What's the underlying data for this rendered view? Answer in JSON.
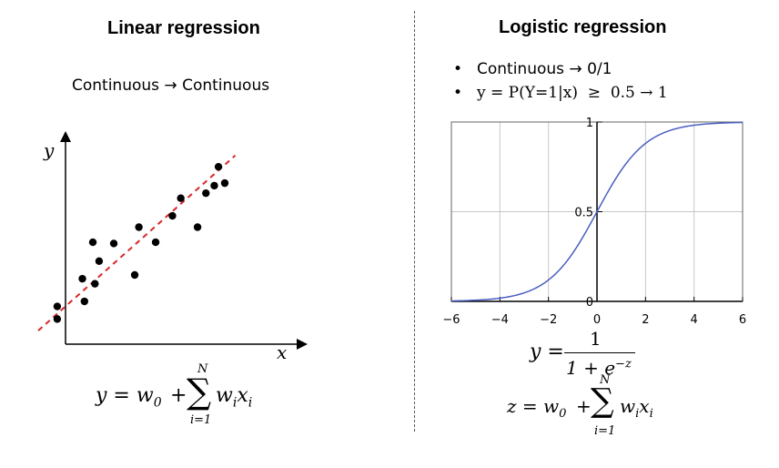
{
  "left_panel": {
    "title": "Linear regression",
    "subtitle_from": "Continuous",
    "subtitle_arrow": "→",
    "subtitle_to": "Continuous",
    "axis_x": "x",
    "axis_y": "y",
    "formula": {
      "lhs": "y = w",
      "lhs_sub": "0",
      "plus": "+",
      "sum_top": "N",
      "sum_sym": "∑",
      "sum_bottom": "i=1",
      "term": "w",
      "term_sub1": "i",
      "term_var": "x",
      "term_sub2": "i"
    },
    "colors": {
      "fit_line": "#d62728",
      "points": "#000000"
    }
  },
  "right_panel": {
    "title": "Logistic regression",
    "bullets": [
      {
        "symbol": "•",
        "text": "Continuous → 0/1"
      },
      {
        "symbol": "•",
        "text": "y = P(Y=1|x)  ≥  0.5 → 1"
      }
    ],
    "sigmoid_formula": {
      "lhs": "y =",
      "num": "1",
      "den_base": "1 + e",
      "den_exp": "−z"
    },
    "z_formula": {
      "lhs": "z = w",
      "lhs_sub": "0",
      "plus": "+",
      "sum_top": "N",
      "sum_sym": "∑",
      "sum_bottom": "i=1",
      "term": "w",
      "term_sub1": "i",
      "term_var": "x",
      "term_sub2": "i"
    }
  },
  "chart_data": [
    {
      "type": "scatter",
      "xlabel": "x",
      "ylabel": "y",
      "points": [
        {
          "x": 0.3,
          "y": 1.0
        },
        {
          "x": 0.3,
          "y": 2.0
        },
        {
          "x": 1.6,
          "y": 2.4
        },
        {
          "x": 1.5,
          "y": 4.2
        },
        {
          "x": 2.1,
          "y": 3.8
        },
        {
          "x": 2.3,
          "y": 5.6
        },
        {
          "x": 2.0,
          "y": 7.1
        },
        {
          "x": 3.0,
          "y": 7.0
        },
        {
          "x": 4.0,
          "y": 4.5
        },
        {
          "x": 4.2,
          "y": 8.3
        },
        {
          "x": 5.0,
          "y": 7.1
        },
        {
          "x": 5.8,
          "y": 9.2
        },
        {
          "x": 6.2,
          "y": 10.6
        },
        {
          "x": 7.0,
          "y": 8.3
        },
        {
          "x": 7.4,
          "y": 11.0
        },
        {
          "x": 7.8,
          "y": 11.6
        },
        {
          "x": 8.0,
          "y": 13.1
        },
        {
          "x": 8.3,
          "y": 11.8
        }
      ],
      "fit_line": {
        "style": "dashed",
        "from": {
          "x": 0.0,
          "y": 0.8
        },
        "to": {
          "x": 8.8,
          "y": 14.0
        }
      },
      "xlim": [
        -0.8,
        10.5
      ],
      "ylim": [
        -1.0,
        15.5
      ],
      "grid": false
    },
    {
      "type": "line",
      "function": "sigmoid",
      "xlim": [
        -6,
        6
      ],
      "ylim": [
        0,
        1
      ],
      "x_ticks": [
        -6,
        -4,
        -2,
        0,
        2,
        4,
        6
      ],
      "x_tick_labels": [
        "−6",
        "−4",
        "−2",
        "0",
        "2",
        "4",
        "6"
      ],
      "y_ticks": [
        0,
        0.5,
        1
      ],
      "y_tick_labels": [
        "0",
        "0.5",
        "1"
      ],
      "grid": true,
      "line_color": "#4a5fc1"
    }
  ]
}
